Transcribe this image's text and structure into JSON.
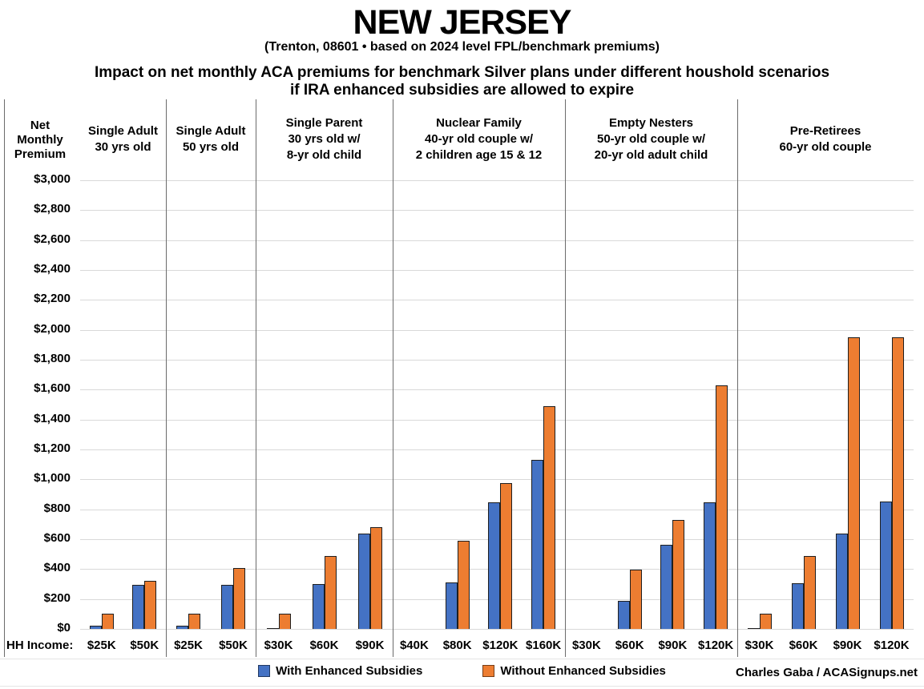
{
  "chart_data": {
    "type": "bar",
    "title": "NEW JERSEY",
    "subtitle": "(Trenton, 08601 • based on 2024 level FPL/benchmark premiums)",
    "description_line1": "Impact on net monthly ACA premiums for benchmark Silver plans under different houshold scenarios",
    "description_line2": "if IRA enhanced subsidies are allowed to expire",
    "ylabel": "Net\nMonthly\nPremium",
    "ylim": [
      0,
      3000
    ],
    "ytick_step": 200,
    "grid": true,
    "legend_position": "bottom",
    "ytick_labels": [
      "$3,000",
      "$2,800",
      "$2,600",
      "$2,400",
      "$2,200",
      "$2,000",
      "$1,800",
      "$1,600",
      "$1,400",
      "$1,200",
      "$1,000",
      "$800",
      "$600",
      "$400",
      "$200",
      "$0"
    ],
    "xaxis_prefix_label": "HH Income:",
    "legend": [
      {
        "label": "With Enhanced Subsidies",
        "color": "#4472C4"
      },
      {
        "label": "Without Enhanced Subsidies",
        "color": "#ED7D31"
      }
    ],
    "panels": [
      {
        "header": "Single Adult\n30 yrs old",
        "categories": [
          "$25K",
          "$50K"
        ],
        "series": [
          {
            "name": "With Enhanced Subsidies",
            "values": [
              20,
              295
            ]
          },
          {
            "name": "Without Enhanced Subsidies",
            "values": [
              100,
              320
            ]
          }
        ]
      },
      {
        "header": "Single Adult\n50 yrs old",
        "categories": [
          "$25K",
          "$50K"
        ],
        "series": [
          {
            "name": "With Enhanced Subsidies",
            "values": [
              20,
              295
            ]
          },
          {
            "name": "Without Enhanced Subsidies",
            "values": [
              100,
              405
            ]
          }
        ]
      },
      {
        "header": "Single Parent\n30 yrs old w/\n8-yr old child",
        "categories": [
          "$30K",
          "$60K",
          "$90K"
        ],
        "series": [
          {
            "name": "With Enhanced Subsidies",
            "values": [
              5,
              300,
              635
            ]
          },
          {
            "name": "Without Enhanced Subsidies",
            "values": [
              100,
              485,
              680
            ]
          }
        ]
      },
      {
        "header": "Nuclear Family\n40-yr old couple w/\n2 children age 15 & 12",
        "categories": [
          "$40K",
          "$80K",
          "$120K",
          "$160K"
        ],
        "series": [
          {
            "name": "With Enhanced Subsidies",
            "values": [
              0,
              310,
              845,
              1130
            ]
          },
          {
            "name": "Without Enhanced Subsidies",
            "values": [
              0,
              590,
              975,
              1490
            ]
          }
        ]
      },
      {
        "header": "Empty Nesters\n50-yr old couple w/\n20-yr old adult child",
        "categories": [
          "$30K",
          "$60K",
          "$90K",
          "$120K"
        ],
        "series": [
          {
            "name": "With Enhanced Subsidies",
            "values": [
              0,
              185,
              565,
              845
            ]
          },
          {
            "name": "Without Enhanced Subsidies",
            "values": [
              0,
              395,
              730,
              1630
            ]
          }
        ]
      },
      {
        "header": "Pre-Retirees\n60-yr old couple",
        "categories": [
          "$30K",
          "$60K",
          "$90K",
          "$120K"
        ],
        "series": [
          {
            "name": "With Enhanced Subsidies",
            "values": [
              5,
              305,
              635,
              850
            ]
          },
          {
            "name": "Without Enhanced Subsidies",
            "values": [
              100,
              485,
              1950,
              1950
            ]
          }
        ]
      }
    ],
    "credit": "Charles Gaba / ACASignups.net"
  }
}
